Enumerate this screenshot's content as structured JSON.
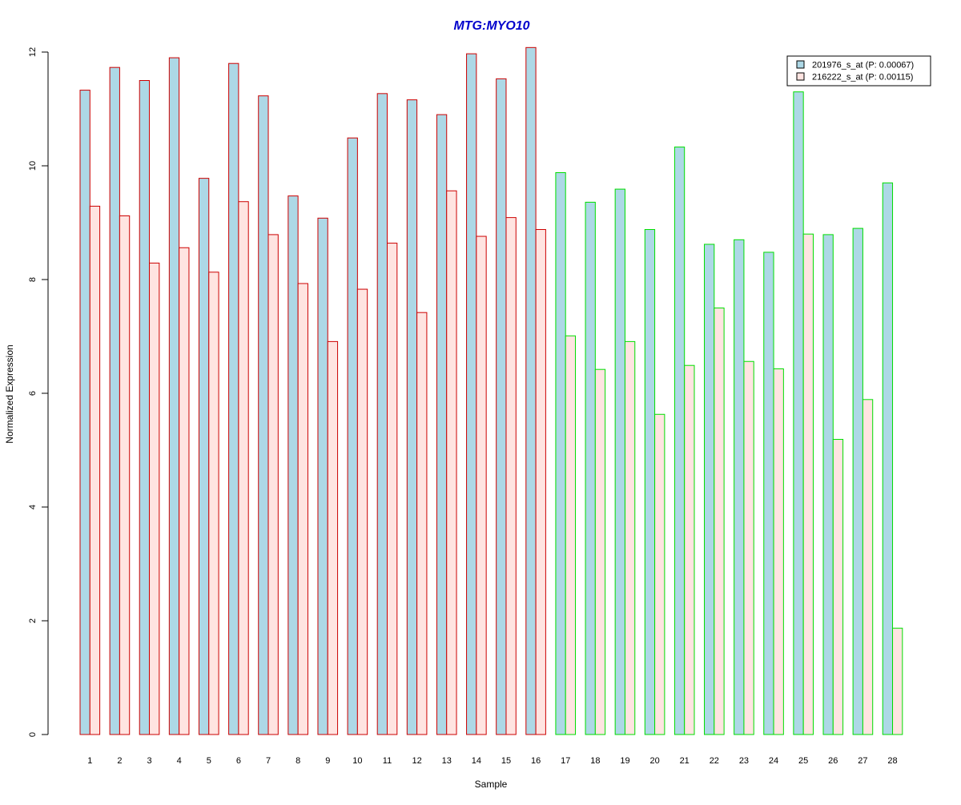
{
  "chart_data": {
    "type": "bar",
    "title": "MTG:MYO10",
    "xlabel": "Sample",
    "ylabel": "Normalized Expression",
    "ylim": [
      0,
      12
    ],
    "yticks": [
      0,
      2,
      4,
      6,
      8,
      10,
      12
    ],
    "grid": false,
    "legend_position": "top-right",
    "categories": [
      "1",
      "2",
      "3",
      "4",
      "5",
      "6",
      "7",
      "8",
      "9",
      "10",
      "11",
      "12",
      "13",
      "14",
      "15",
      "16",
      "17",
      "18",
      "19",
      "20",
      "21",
      "22",
      "23",
      "24",
      "25",
      "26",
      "27",
      "28"
    ],
    "series": [
      {
        "name": "201976_s_at (P: 0.00067)",
        "fill": "#add8e6",
        "values": [
          11.33,
          11.73,
          11.5,
          11.9,
          9.78,
          11.8,
          11.23,
          9.47,
          9.08,
          10.49,
          11.27,
          11.16,
          10.9,
          11.97,
          11.53,
          12.08,
          9.88,
          9.36,
          9.59,
          8.88,
          10.33,
          8.62,
          8.7,
          8.48,
          11.3,
          8.79,
          8.9,
          9.7
        ]
      },
      {
        "name": "216222_s_at (P: 0.00115)",
        "fill": "#ffe4e1",
        "values": [
          9.29,
          9.12,
          8.29,
          8.56,
          8.13,
          9.37,
          8.79,
          7.93,
          6.91,
          7.83,
          8.64,
          7.42,
          9.56,
          8.76,
          9.09,
          8.88,
          7.01,
          6.42,
          6.91,
          5.63,
          6.49,
          7.5,
          6.56,
          6.43,
          8.8,
          5.19,
          5.89,
          1.87
        ]
      }
    ],
    "group_border_colors": {
      "samples_1_16": "#cc0000",
      "samples_17_28": "#00dd00"
    },
    "title_color": "#0000cc"
  }
}
